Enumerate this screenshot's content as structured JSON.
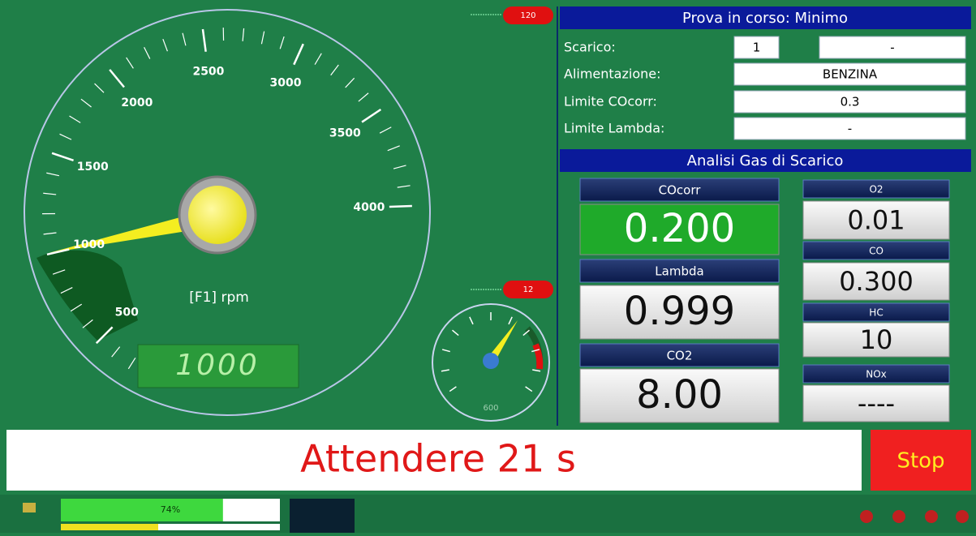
{
  "rpm_gauge": {
    "badge": "120",
    "labels": [
      "500",
      "1000",
      "1500",
      "2000",
      "2500",
      "3000",
      "3500",
      "4000"
    ],
    "unit": "[F1] rpm",
    "display": "1000"
  },
  "small_gauge": {
    "badge": "12",
    "display": "600"
  },
  "test_panel": {
    "title": "Prova in corso: Minimo",
    "rows": [
      {
        "label": "Scarico:",
        "values": [
          "1",
          "-"
        ]
      },
      {
        "label": "Alimentazione:",
        "values": [
          "BENZINA"
        ]
      },
      {
        "label": "Limite COcorr:",
        "values": [
          "0.3"
        ]
      },
      {
        "label": "Limite Lambda:",
        "values": [
          "-"
        ]
      }
    ]
  },
  "gas_panel": {
    "title": "Analisi Gas di Scarico",
    "left": [
      {
        "label": "COcorr",
        "value": "0.200"
      },
      {
        "label": "Lambda",
        "value": "0.999"
      },
      {
        "label": "CO2",
        "value": "8.00"
      }
    ],
    "right": [
      {
        "label": "O2",
        "value": "0.01"
      },
      {
        "label": "CO",
        "value": "0.300"
      },
      {
        "label": "HC",
        "value": "10"
      },
      {
        "label": "NOx",
        "value": "----"
      }
    ]
  },
  "message": "Attendere 21 s",
  "stop_button": "Stop",
  "progress": {
    "value": 74,
    "label": "74%"
  }
}
